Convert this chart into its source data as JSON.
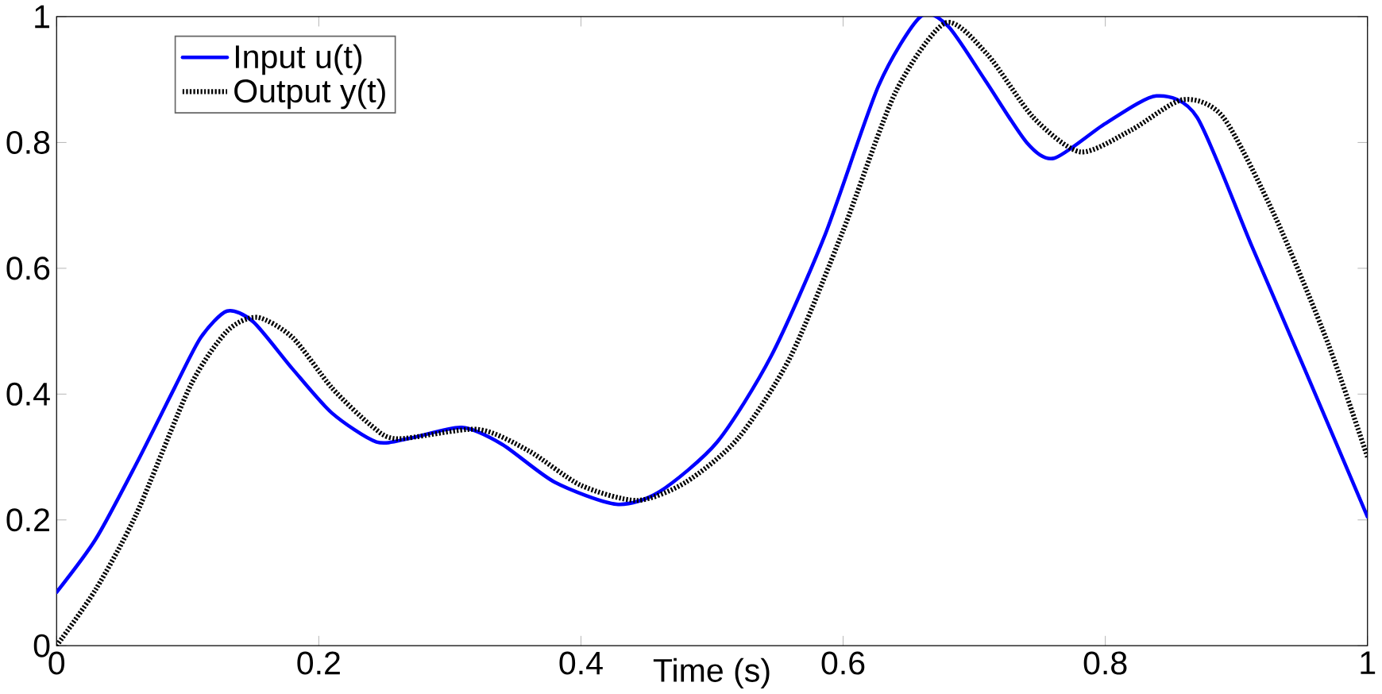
{
  "chart_data": {
    "type": "line",
    "xlabel": "Time (s)",
    "xlim": [
      0,
      1
    ],
    "ylim": [
      0,
      1
    ],
    "xticks": [
      0,
      0.2,
      0.4,
      0.6,
      0.8,
      1
    ],
    "yticks": [
      0,
      0.2,
      0.4,
      0.6,
      0.8,
      1
    ],
    "grid": false,
    "legend": "top left",
    "marker": "none",
    "series": [
      {
        "name": "Input u(t)",
        "color": "#0000ff",
        "line_style": "solid",
        "x": [
          0,
          0.03,
          0.061,
          0.09,
          0.11,
          0.13,
          0.15,
          0.18,
          0.21,
          0.244,
          0.27,
          0.309,
          0.34,
          0.38,
          0.427,
          0.46,
          0.504,
          0.545,
          0.586,
          0.627,
          0.659,
          0.68,
          0.708,
          0.74,
          0.761,
          0.8,
          0.839,
          0.87,
          0.912,
          0.952,
          1.0
        ],
        "values": [
          0.085,
          0.17,
          0.29,
          0.41,
          0.49,
          0.532,
          0.515,
          0.44,
          0.37,
          0.324,
          0.33,
          0.347,
          0.32,
          0.26,
          0.225,
          0.245,
          0.324,
          0.46,
          0.652,
          0.89,
          1.0,
          0.985,
          0.9,
          0.8,
          0.775,
          0.83,
          0.874,
          0.84,
          0.634,
          0.44,
          0.205
        ]
      },
      {
        "name": "Output y(t)",
        "color": "#000000",
        "line_style": "dotted",
        "x": [
          0,
          0.03,
          0.061,
          0.102,
          0.13,
          0.153,
          0.18,
          0.21,
          0.24,
          0.26,
          0.321,
          0.36,
          0.4,
          0.443,
          0.48,
          0.52,
          0.56,
          0.6,
          0.64,
          0.678,
          0.71,
          0.745,
          0.781,
          0.82,
          0.859,
          0.89,
          0.93,
          0.97,
          1.0
        ],
        "values": [
          0,
          0.09,
          0.21,
          0.413,
          0.5,
          0.522,
          0.49,
          0.41,
          0.35,
          0.329,
          0.344,
          0.31,
          0.255,
          0.231,
          0.26,
          0.33,
          0.46,
          0.66,
          0.88,
          0.99,
          0.94,
          0.84,
          0.785,
          0.82,
          0.868,
          0.84,
          0.68,
          0.48,
          0.3
        ]
      }
    ]
  }
}
